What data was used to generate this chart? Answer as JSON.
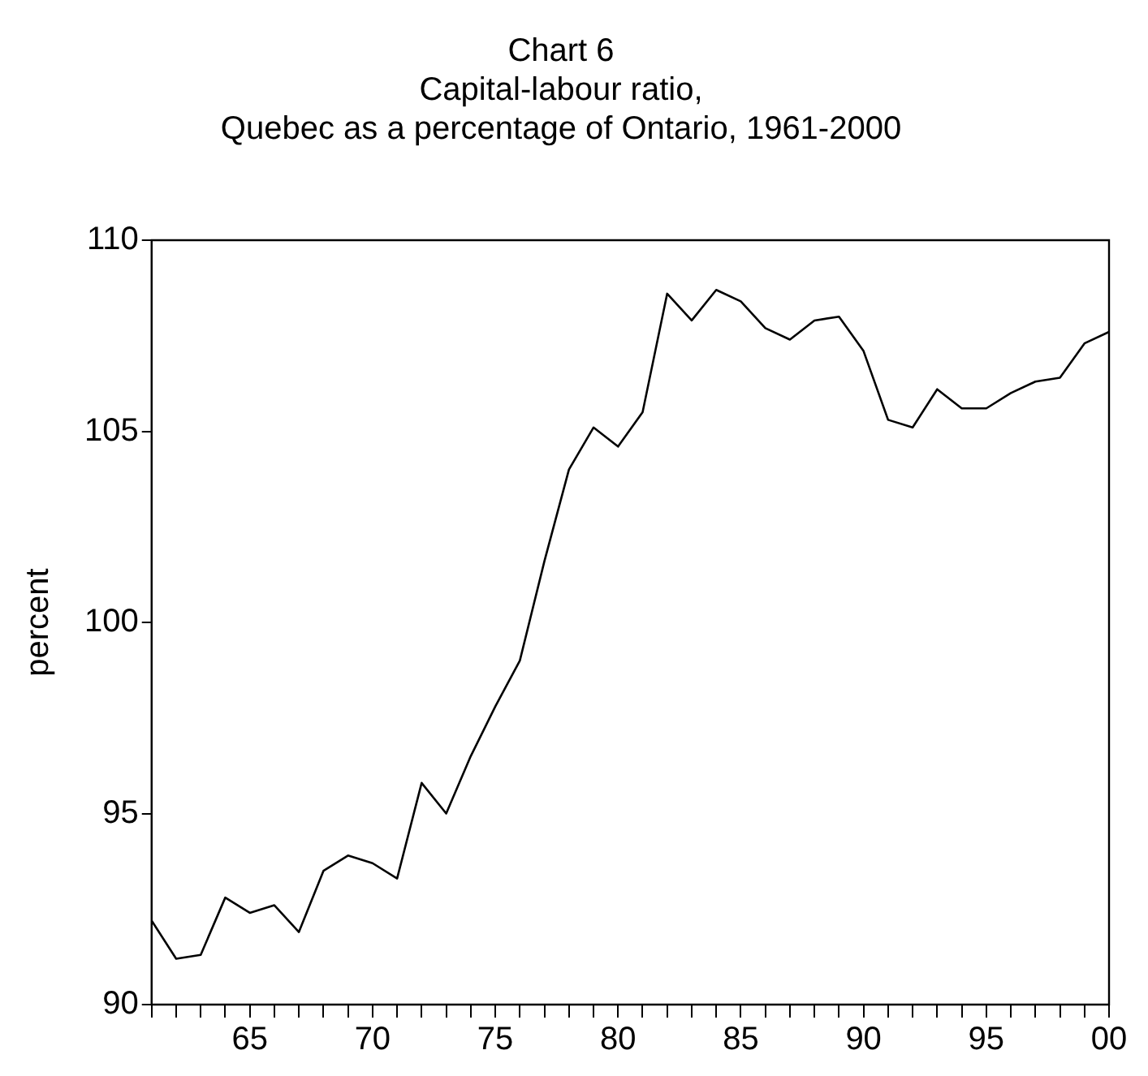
{
  "chart_data": {
    "type": "line",
    "title": "Chart 6",
    "subtitle": "Capital-labour ratio,\nQuebec as a percentage of Ontario, 1961-2000",
    "ylabel": "percent",
    "x": [
      1961,
      1962,
      1963,
      1964,
      1965,
      1966,
      1967,
      1968,
      1969,
      1970,
      1971,
      1972,
      1973,
      1974,
      1975,
      1976,
      1977,
      1978,
      1979,
      1980,
      1981,
      1982,
      1983,
      1984,
      1985,
      1986,
      1987,
      1988,
      1989,
      1990,
      1991,
      1992,
      1993,
      1994,
      1995,
      1996,
      1997,
      1998,
      1999,
      2000
    ],
    "series": [
      {
        "color": "#000000",
        "values": [
          92.2,
          91.2,
          91.3,
          92.8,
          92.4,
          92.6,
          91.9,
          93.5,
          93.9,
          93.7,
          93.3,
          95.8,
          95.0,
          96.5,
          97.8,
          99.0,
          101.6,
          104.0,
          105.1,
          104.6,
          105.5,
          108.6,
          107.9,
          108.7,
          108.4,
          107.7,
          107.4,
          107.9,
          108.0,
          107.1,
          105.3,
          105.1,
          106.1,
          105.6,
          105.6,
          106.0,
          106.3,
          106.4,
          107.3,
          107.6
        ]
      }
    ],
    "xlim": [
      1961,
      2000
    ],
    "xticks": [
      {
        "value": 1961,
        "label": null
      },
      {
        "value": 1962,
        "label": null
      },
      {
        "value": 1963,
        "label": null
      },
      {
        "value": 1964,
        "label": null
      },
      {
        "value": 1965,
        "label": "65"
      },
      {
        "value": 1966,
        "label": null
      },
      {
        "value": 1967,
        "label": null
      },
      {
        "value": 1968,
        "label": null
      },
      {
        "value": 1969,
        "label": null
      },
      {
        "value": 1970,
        "label": "70"
      },
      {
        "value": 1971,
        "label": null
      },
      {
        "value": 1972,
        "label": null
      },
      {
        "value": 1973,
        "label": null
      },
      {
        "value": 1974,
        "label": null
      },
      {
        "value": 1975,
        "label": "75"
      },
      {
        "value": 1976,
        "label": null
      },
      {
        "value": 1977,
        "label": null
      },
      {
        "value": 1978,
        "label": null
      },
      {
        "value": 1979,
        "label": null
      },
      {
        "value": 1980,
        "label": "80"
      },
      {
        "value": 1981,
        "label": null
      },
      {
        "value": 1982,
        "label": null
      },
      {
        "value": 1983,
        "label": null
      },
      {
        "value": 1984,
        "label": null
      },
      {
        "value": 1985,
        "label": "85"
      },
      {
        "value": 1986,
        "label": null
      },
      {
        "value": 1987,
        "label": null
      },
      {
        "value": 1988,
        "label": null
      },
      {
        "value": 1989,
        "label": null
      },
      {
        "value": 1990,
        "label": "90"
      },
      {
        "value": 1991,
        "label": null
      },
      {
        "value": 1992,
        "label": null
      },
      {
        "value": 1993,
        "label": null
      },
      {
        "value": 1994,
        "label": null
      },
      {
        "value": 1995,
        "label": "95"
      },
      {
        "value": 1996,
        "label": null
      },
      {
        "value": 1997,
        "label": null
      },
      {
        "value": 1998,
        "label": null
      },
      {
        "value": 1999,
        "label": null
      },
      {
        "value": 2000,
        "label": "00"
      }
    ],
    "ylim": [
      90,
      110
    ],
    "yticks": [
      90,
      95,
      100,
      105,
      110
    ],
    "grid": false,
    "legend": false,
    "marker": "none",
    "line_style": "solid"
  }
}
